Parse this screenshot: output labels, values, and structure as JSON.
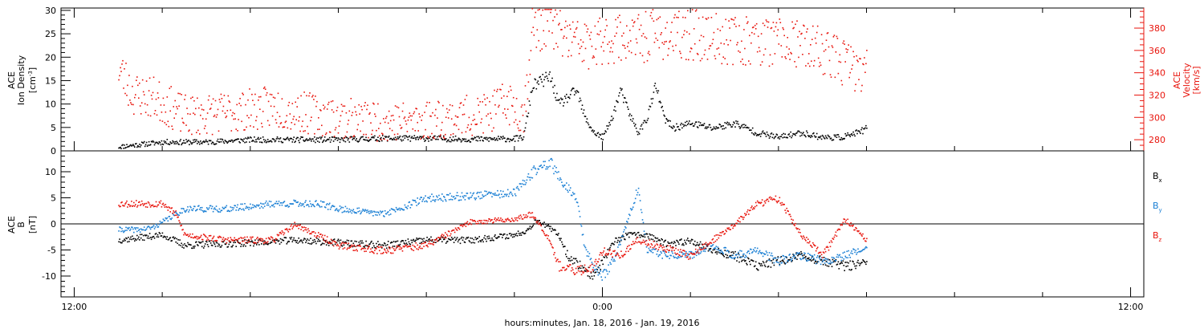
{
  "chart_data": [
    {
      "type": "scatter",
      "panel": "top",
      "left_axis_label": [
        "ACE",
        "Ion Density",
        "[cm",
        "-3",
        "]"
      ],
      "right_axis_label": [
        "ACE",
        "Velocity",
        "[km/s]"
      ],
      "left_ylim": [
        0,
        30.5
      ],
      "left_ticks": [
        "0",
        "5",
        "10",
        "15",
        "20",
        "25",
        "30"
      ],
      "right_ylim": [
        270,
        398
      ],
      "right_ticks": [
        "280",
        "300",
        "320",
        "340",
        "360",
        "380"
      ],
      "series": [
        {
          "color": "#000000",
          "axis": "left",
          "points": [
            [
              -11,
              1
            ],
            [
              -10.5,
              1.5
            ],
            [
              -10,
              2
            ],
            [
              -9,
              2
            ],
            [
              -8,
              2.5
            ],
            [
              -7,
              2.5
            ],
            [
              -6,
              2.5
            ],
            [
              -5,
              2.8
            ],
            [
              -4,
              2.8
            ],
            [
              -3,
              2.6
            ],
            [
              -2,
              2.7
            ],
            [
              -1.8,
              3
            ],
            [
              -1.6,
              14
            ],
            [
              -1.2,
              16
            ],
            [
              -1,
              10
            ],
            [
              -0.6,
              13
            ],
            [
              -0.4,
              7
            ],
            [
              -0.2,
              4
            ],
            [
              0,
              3
            ],
            [
              0.2,
              7
            ],
            [
              0.4,
              13
            ],
            [
              0.6,
              8
            ],
            [
              0.8,
              4
            ],
            [
              1,
              7
            ],
            [
              1.2,
              14
            ],
            [
              1.4,
              7
            ],
            [
              1.6,
              5
            ],
            [
              2,
              6
            ],
            [
              2.5,
              5
            ],
            [
              3,
              6
            ],
            [
              3.5,
              4
            ],
            [
              4,
              3
            ],
            [
              4.5,
              4
            ],
            [
              5,
              3
            ],
            [
              5.4,
              3
            ],
            [
              5.8,
              4
            ],
            [
              6,
              5
            ]
          ]
        },
        {
          "color": "#e8140c",
          "axis": "right",
          "points": [
            [
              -11,
              345
            ],
            [
              -10.7,
              322
            ],
            [
              -10.2,
              318
            ],
            [
              -9.5,
              302
            ],
            [
              -8.5,
              305
            ],
            [
              -7.5,
              310
            ],
            [
              -6.5,
              303
            ],
            [
              -5.5,
              298
            ],
            [
              -4.5,
              297
            ],
            [
              -3.5,
              300
            ],
            [
              -2.5,
              305
            ],
            [
              -2.2,
              315
            ],
            [
              -1.8,
              303
            ],
            [
              -1.6,
              380
            ],
            [
              -1.2,
              388
            ],
            [
              -1,
              375
            ],
            [
              -0.6,
              368
            ],
            [
              -0.2,
              363
            ],
            [
              0,
              370
            ],
            [
              0.4,
              373
            ],
            [
              0.8,
              370
            ],
            [
              1.2,
              376
            ],
            [
              1.6,
              372
            ],
            [
              2,
              375
            ],
            [
              2.5,
              372
            ],
            [
              3,
              370
            ],
            [
              3.5,
              370
            ],
            [
              4,
              368
            ],
            [
              4.5,
              365
            ],
            [
              5,
              360
            ],
            [
              5.5,
              350
            ],
            [
              5.8,
              342
            ],
            [
              6,
              340
            ]
          ]
        }
      ]
    },
    {
      "type": "scatter",
      "panel": "bottom",
      "left_axis_label": [
        "ACE",
        "B",
        "[nT]"
      ],
      "left_ylim": [
        -14,
        14
      ],
      "left_ticks": [
        "-10",
        "-5",
        "0",
        "5",
        "10"
      ],
      "legend": [
        {
          "text": "B",
          "sub": "x",
          "color": "#000000"
        },
        {
          "text": "B",
          "sub": "y",
          "color": "#1a7fd4"
        },
        {
          "text": "B",
          "sub": "z",
          "color": "#e8140c"
        }
      ],
      "series": [
        {
          "color": "#000000",
          "points": [
            [
              -11,
              -3
            ],
            [
              -10,
              -2
            ],
            [
              -9.5,
              -4
            ],
            [
              -8,
              -3.5
            ],
            [
              -7,
              -3
            ],
            [
              -6,
              -3.5
            ],
            [
              -5,
              -4
            ],
            [
              -4,
              -3
            ],
            [
              -3,
              -3
            ],
            [
              -2,
              -2
            ],
            [
              -1.7,
              -1
            ],
            [
              -1.5,
              1
            ],
            [
              -1,
              -2
            ],
            [
              -0.8,
              -6
            ],
            [
              -0.5,
              -8
            ],
            [
              -0.2,
              -10
            ],
            [
              0,
              -7
            ],
            [
              0.3,
              -3
            ],
            [
              0.6,
              -2
            ],
            [
              1,
              -2
            ],
            [
              1.5,
              -4
            ],
            [
              2,
              -3
            ],
            [
              2.5,
              -5
            ],
            [
              3,
              -6
            ],
            [
              3.5,
              -8
            ],
            [
              4,
              -7
            ],
            [
              4.5,
              -6
            ],
            [
              5,
              -7
            ],
            [
              5.5,
              -8
            ],
            [
              6,
              -7.5
            ]
          ]
        },
        {
          "color": "#1a7fd4",
          "points": [
            [
              -11,
              -1
            ],
            [
              -10.5,
              -1
            ],
            [
              -10.2,
              -0.5
            ],
            [
              -9.5,
              3
            ],
            [
              -8.5,
              3
            ],
            [
              -7.5,
              4
            ],
            [
              -6.5,
              4
            ],
            [
              -6,
              3
            ],
            [
              -5,
              2
            ],
            [
              -4,
              5
            ],
            [
              -3,
              5.5
            ],
            [
              -2,
              6
            ],
            [
              -1.6,
              10
            ],
            [
              -1.2,
              12
            ],
            [
              -1,
              9
            ],
            [
              -0.6,
              5
            ],
            [
              -0.4,
              -5
            ],
            [
              -0.2,
              -8
            ],
            [
              0,
              -10
            ],
            [
              0.3,
              -6
            ],
            [
              0.8,
              7
            ],
            [
              1,
              -5
            ],
            [
              1.5,
              -6
            ],
            [
              2,
              -6
            ],
            [
              2.5,
              -4
            ],
            [
              3,
              -6
            ],
            [
              3.5,
              -5
            ],
            [
              4,
              -7
            ],
            [
              4.5,
              -6
            ],
            [
              5,
              -7
            ],
            [
              5.5,
              -6
            ],
            [
              6,
              -4
            ]
          ]
        },
        {
          "color": "#e8140c",
          "points": [
            [
              -11,
              4
            ],
            [
              -10,
              4
            ],
            [
              -9.7,
              2
            ],
            [
              -9.5,
              -2
            ],
            [
              -8.5,
              -3
            ],
            [
              -7.5,
              -3
            ],
            [
              -7,
              0
            ],
            [
              -6,
              -4
            ],
            [
              -5,
              -5
            ],
            [
              -4,
              -4
            ],
            [
              -3,
              0.5
            ],
            [
              -2,
              1
            ],
            [
              -1.6,
              2
            ],
            [
              -1.2,
              -3
            ],
            [
              -1,
              -8
            ],
            [
              -0.6,
              -9
            ],
            [
              -0.2,
              -8
            ],
            [
              0,
              -5
            ],
            [
              0.4,
              -6
            ],
            [
              0.8,
              -3
            ],
            [
              1.2,
              -4
            ],
            [
              1.6,
              -5
            ],
            [
              2,
              -6
            ],
            [
              2.5,
              -3
            ],
            [
              3,
              0
            ],
            [
              3.5,
              4
            ],
            [
              4,
              5
            ],
            [
              4.5,
              -2
            ],
            [
              5,
              -6
            ],
            [
              5.5,
              1
            ],
            [
              6,
              -3
            ]
          ]
        }
      ]
    }
  ],
  "x_axis": {
    "label": "hours:minutes, Jan. 18, 2016 - Jan. 19, 2016",
    "range_hours": [
      -12.3,
      12.3
    ],
    "labeled_ticks": [
      {
        "label": "12:00",
        "hour": -12
      },
      {
        "label": "0:00",
        "hour": 0
      },
      {
        "label": "12:00",
        "hour": 12
      }
    ]
  }
}
